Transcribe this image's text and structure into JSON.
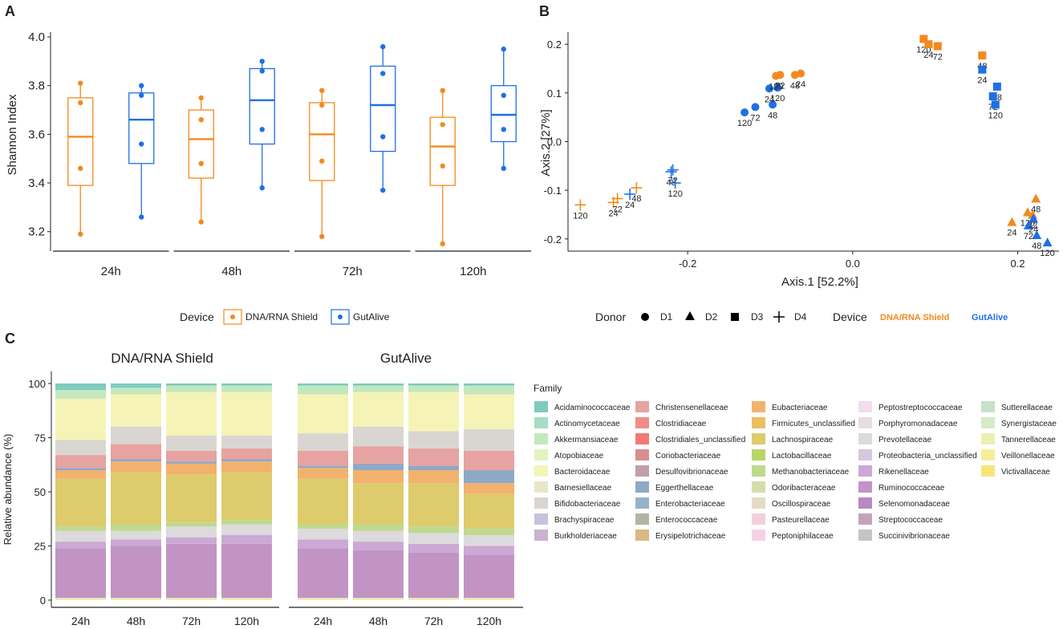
{
  "panels": {
    "A": {
      "label": "A",
      "ylabel": "Shannon Index",
      "yticks": [
        "3.2",
        "3.4",
        "3.6",
        "3.8",
        "4.0"
      ],
      "ytick_values": [
        3.2,
        3.4,
        3.6,
        3.8,
        4.0
      ],
      "ylim": [
        3.12,
        4.02
      ],
      "legend_title": "Device",
      "legend": [
        "DNA/RNA Shield",
        "GutAlive"
      ]
    },
    "B": {
      "label": "B",
      "xlabel": "Axis.1   [52.2%]",
      "ylabel": "Axis.2   [27%]",
      "xticks": [
        "-0.2",
        "0.0",
        "0.2"
      ],
      "xtick_values": [
        -0.2,
        0.0,
        0.2
      ],
      "yticks": [
        "-0.2",
        "-0.1",
        "0.0",
        "0.1",
        "0.2"
      ],
      "ytick_values": [
        -0.2,
        -0.1,
        0.0,
        0.1,
        0.2
      ],
      "xlim": [
        -0.345,
        0.25
      ],
      "ylim": [
        -0.225,
        0.225
      ],
      "donor_legend_title": "Donor",
      "donors": [
        "D1",
        "D2",
        "D3",
        "D4"
      ],
      "device_legend_title": "Device",
      "devices": [
        "DNA/RNA Shield",
        "GutAlive"
      ]
    },
    "C": {
      "label": "C",
      "ylabel": "Relative abundance (%)",
      "yticks": [
        "0",
        "25",
        "50",
        "75",
        "100"
      ],
      "ytick_values": [
        0,
        25,
        50,
        75,
        100
      ],
      "family_title": "Family"
    }
  },
  "colors": {
    "shield": "#F28A1E",
    "gutalive": "#1F6FE5",
    "axis": "#222222"
  },
  "chart_data": [
    {
      "type": "box",
      "panel": "A",
      "categories": [
        "24h",
        "48h",
        "72h",
        "120h"
      ],
      "series": [
        {
          "name": "DNA/RNA Shield",
          "boxes": [
            {
              "min": 3.19,
              "q1": 3.39,
              "median": 3.59,
              "q3": 3.75,
              "max": 3.81,
              "points": [
                3.81,
                3.73,
                3.46,
                3.19
              ]
            },
            {
              "min": 3.24,
              "q1": 3.42,
              "median": 3.58,
              "q3": 3.7,
              "max": 3.75,
              "points": [
                3.75,
                3.66,
                3.48,
                3.24
              ]
            },
            {
              "min": 3.18,
              "q1": 3.41,
              "median": 3.6,
              "q3": 3.73,
              "max": 3.78,
              "points": [
                3.78,
                3.72,
                3.49,
                3.18
              ]
            },
            {
              "min": 3.15,
              "q1": 3.39,
              "median": 3.55,
              "q3": 3.67,
              "max": 3.78,
              "points": [
                3.78,
                3.64,
                3.47,
                3.15
              ]
            }
          ]
        },
        {
          "name": "GutAlive",
          "boxes": [
            {
              "min": 3.26,
              "q1": 3.48,
              "median": 3.66,
              "q3": 3.77,
              "max": 3.8,
              "points": [
                3.8,
                3.76,
                3.56,
                3.26
              ]
            },
            {
              "min": 3.38,
              "q1": 3.56,
              "median": 3.74,
              "q3": 3.87,
              "max": 3.9,
              "points": [
                3.9,
                3.86,
                3.62,
                3.38
              ]
            },
            {
              "min": 3.37,
              "q1": 3.53,
              "median": 3.72,
              "q3": 3.88,
              "max": 3.96,
              "points": [
                3.96,
                3.85,
                3.59,
                3.37
              ]
            },
            {
              "min": 3.46,
              "q1": 3.57,
              "median": 3.68,
              "q3": 3.8,
              "max": 3.95,
              "points": [
                3.95,
                3.76,
                3.62,
                3.46
              ]
            }
          ]
        }
      ]
    },
    {
      "type": "scatter",
      "panel": "B",
      "points": [
        {
          "x": -0.33,
          "y": -0.13,
          "donor": "D4",
          "device": "DNA/RNA Shield",
          "label": "120"
        },
        {
          "x": -0.29,
          "y": -0.125,
          "donor": "D4",
          "device": "DNA/RNA Shield",
          "label": "24"
        },
        {
          "x": -0.285,
          "y": -0.117,
          "donor": "D4",
          "device": "DNA/RNA Shield",
          "label": "72"
        },
        {
          "x": -0.262,
          "y": -0.095,
          "donor": "D4",
          "device": "DNA/RNA Shield",
          "label": "48"
        },
        {
          "x": -0.27,
          "y": -0.108,
          "donor": "D4",
          "device": "GutAlive",
          "label": "24"
        },
        {
          "x": -0.218,
          "y": -0.058,
          "donor": "D4",
          "device": "GutAlive",
          "label": "72"
        },
        {
          "x": -0.22,
          "y": -0.062,
          "donor": "D4",
          "device": "GutAlive",
          "label": "48"
        },
        {
          "x": -0.215,
          "y": -0.085,
          "donor": "D4",
          "device": "GutAlive",
          "label": "120"
        },
        {
          "x": -0.131,
          "y": 0.06,
          "donor": "D1",
          "device": "GutAlive",
          "label": "120"
        },
        {
          "x": -0.118,
          "y": 0.071,
          "donor": "D1",
          "device": "GutAlive",
          "label": "72"
        },
        {
          "x": -0.097,
          "y": 0.076,
          "donor": "D1",
          "device": "GutAlive",
          "label": "48"
        },
        {
          "x": -0.101,
          "y": 0.109,
          "donor": "D1",
          "device": "GutAlive",
          "label": "24"
        },
        {
          "x": -0.091,
          "y": 0.111,
          "donor": "D1",
          "device": "GutAlive",
          "label": "120"
        },
        {
          "x": -0.093,
          "y": 0.135,
          "donor": "D1",
          "device": "DNA/RNA Shield",
          "label": "120"
        },
        {
          "x": -0.088,
          "y": 0.137,
          "donor": "D1",
          "device": "DNA/RNA Shield",
          "label": "72"
        },
        {
          "x": -0.07,
          "y": 0.137,
          "donor": "D1",
          "device": "DNA/RNA Shield",
          "label": "48"
        },
        {
          "x": -0.063,
          "y": 0.14,
          "donor": "D1",
          "device": "DNA/RNA Shield",
          "label": "24"
        },
        {
          "x": 0.086,
          "y": 0.211,
          "donor": "D3",
          "device": "DNA/RNA Shield",
          "label": "120"
        },
        {
          "x": 0.092,
          "y": 0.2,
          "donor": "D3",
          "device": "DNA/RNA Shield",
          "label": "24"
        },
        {
          "x": 0.103,
          "y": 0.196,
          "donor": "D3",
          "device": "DNA/RNA Shield",
          "label": "72"
        },
        {
          "x": 0.157,
          "y": 0.177,
          "donor": "D3",
          "device": "DNA/RNA Shield",
          "label": "48"
        },
        {
          "x": 0.157,
          "y": 0.148,
          "donor": "D3",
          "device": "GutAlive",
          "label": "24"
        },
        {
          "x": 0.175,
          "y": 0.113,
          "donor": "D3",
          "device": "GutAlive",
          "label": "48"
        },
        {
          "x": 0.17,
          "y": 0.093,
          "donor": "D3",
          "device": "GutAlive",
          "label": "72"
        },
        {
          "x": 0.173,
          "y": 0.076,
          "donor": "D3",
          "device": "GutAlive",
          "label": "120"
        },
        {
          "x": 0.193,
          "y": -0.165,
          "donor": "D2",
          "device": "DNA/RNA Shield",
          "label": "24"
        },
        {
          "x": 0.212,
          "y": -0.145,
          "donor": "D2",
          "device": "DNA/RNA Shield",
          "label": "120"
        },
        {
          "x": 0.222,
          "y": -0.117,
          "donor": "D2",
          "device": "DNA/RNA Shield",
          "label": "48"
        },
        {
          "x": 0.218,
          "y": -0.15,
          "donor": "D2",
          "device": "DNA/RNA Shield",
          "label": "72"
        },
        {
          "x": 0.213,
          "y": -0.172,
          "donor": "D2",
          "device": "GutAlive",
          "label": "72"
        },
        {
          "x": 0.219,
          "y": -0.158,
          "donor": "D2",
          "device": "GutAlive",
          "label": "24"
        },
        {
          "x": 0.223,
          "y": -0.192,
          "donor": "D2",
          "device": "GutAlive",
          "label": "48"
        },
        {
          "x": 0.236,
          "y": -0.207,
          "donor": "D2",
          "device": "GutAlive",
          "label": "120"
        }
      ]
    },
    {
      "type": "stacked_bar",
      "panel": "C",
      "groups": [
        "DNA/RNA Shield",
        "GutAlive"
      ],
      "categories": [
        "24h",
        "48h",
        "72h",
        "120h"
      ],
      "families": [
        {
          "name": "Acidaminococcaceae",
          "color": "#7ECBBE"
        },
        {
          "name": "Actinomycetaceae",
          "color": "#A7DCC6"
        },
        {
          "name": "Akkermansiaceae",
          "color": "#C3E8BE"
        },
        {
          "name": "Atopobiaceae",
          "color": "#E1F3C0"
        },
        {
          "name": "Bacteroidaceae",
          "color": "#F5F4B6"
        },
        {
          "name": "Barnesiellaceae",
          "color": "#E8E6C9"
        },
        {
          "name": "Bifidobacteriaceae",
          "color": "#D9D6D2"
        },
        {
          "name": "Brachyspiraceae",
          "color": "#C7C3DD"
        },
        {
          "name": "Burkholderiaceae",
          "color": "#C9B3CF"
        },
        {
          "name": "Christensenellaceae",
          "color": "#E6A3A1"
        },
        {
          "name": "Clostridiaceae",
          "color": "#EE8E88"
        },
        {
          "name": "Clostridiales_unclassified",
          "color": "#F17A72"
        },
        {
          "name": "Coriobacteriaceae",
          "color": "#D88E8F"
        },
        {
          "name": "Desulfovibrionaceae",
          "color": "#BFA0A6"
        },
        {
          "name": "Eggerthellaceae",
          "color": "#8FA8C6"
        },
        {
          "name": "Enterobacteriaceae",
          "color": "#95B4CA"
        },
        {
          "name": "Enterococcaceae",
          "color": "#B5B4A4"
        },
        {
          "name": "Erysipelotrichaceae",
          "color": "#D8B884"
        },
        {
          "name": "Eubacteriaceae",
          "color": "#F2B26E"
        },
        {
          "name": "Firmicutes_unclassified",
          "color": "#EDBE62"
        },
        {
          "name": "Lachnospiraceae",
          "color": "#DDCB6C"
        },
        {
          "name": "Lactobacillaceae",
          "color": "#B8D568"
        },
        {
          "name": "Methanobacteriaceae",
          "color": "#BFD98D"
        },
        {
          "name": "Odoribacteraceae",
          "color": "#D3DEA8"
        },
        {
          "name": "Oscillospiraceae",
          "color": "#E4DCC4"
        },
        {
          "name": "Pasteurellaceae",
          "color": "#F3CFDB"
        },
        {
          "name": "Peptoniphilaceae",
          "color": "#F4D2E6"
        },
        {
          "name": "Peptostreptococcaceae",
          "color": "#F1DDEB"
        },
        {
          "name": "Porphyromonadaceae",
          "color": "#E9DCE4"
        },
        {
          "name": "Prevotellaceae",
          "color": "#DCDADC"
        },
        {
          "name": "Proteobacteria_unclassified",
          "color": "#D6C8DE"
        },
        {
          "name": "Rikenellaceae",
          "color": "#CBA9D4"
        },
        {
          "name": "Ruminococcaceae",
          "color": "#C294C5"
        },
        {
          "name": "Selenomonadaceae",
          "color": "#B889C2"
        },
        {
          "name": "Streptococcaceae",
          "color": "#C3A3BC"
        },
        {
          "name": "Succinivibrionaceae",
          "color": "#C7C4C2"
        },
        {
          "name": "Sutterellaceae",
          "color": "#C9E0C9"
        },
        {
          "name": "Synergistaceae",
          "color": "#D6EBC8"
        },
        {
          "name": "Tannerellaceae",
          "color": "#EAF0B3"
        },
        {
          "name": "Veillonellaceae",
          "color": "#F7EE9A"
        },
        {
          "name": "Victivallaceae",
          "color": "#F7E57C"
        }
      ],
      "segments_order": [
        "Bacteroidaceae_base",
        "Ruminococcaceae",
        "Rikenellaceae",
        "Prevotellaceae",
        "Methanobacteriaceae",
        "Lachnospiraceae",
        "Eubacteriaceae",
        "Eggerthellaceae",
        "Christensenellaceae",
        "Bifidobacteriaceae",
        "Bacteroidaceae",
        "Akkermansiaceae",
        "Acidaminococcaceae"
      ],
      "bars": {
        "DNA/RNA Shield": [
          {
            "Tannerellaceae": 1,
            "Ruminococcaceae": 23,
            "Rikenellaceae": 3,
            "Prevotellaceae": 5,
            "Methanobacteriaceae": 2,
            "Lachnospiraceae": 22,
            "Eubacteriaceae": 4,
            "Eggerthellaceae": 1,
            "Christensenellaceae": 6,
            "Bifidobacteriaceae": 7,
            "Bacteroidaceae": 19,
            "Akkermansiaceae": 4,
            "Acidaminococcaceae": 1
          },
          {
            "Tannerellaceae": 1,
            "Ruminococcaceae": 24,
            "Rikenellaceae": 3,
            "Prevotellaceae": 4,
            "Methanobacteriaceae": 3,
            "Lachnospiraceae": 24,
            "Eubacteriaceae": 5,
            "Eggerthellaceae": 1,
            "Christensenellaceae": 7,
            "Bifidobacteriaceae": 8,
            "Bacteroidaceae": 15,
            "Akkermansiaceae": 3,
            "Acidaminococcaceae": 1
          },
          {
            "Tannerellaceae": 1,
            "Ruminococcaceae": 25,
            "Rikenellaceae": 3,
            "Prevotellaceae": 5,
            "Methanobacteriaceae": 2,
            "Lachnospiraceae": 22,
            "Eubacteriaceae": 5,
            "Eggerthellaceae": 1,
            "Christensenellaceae": 5,
            "Bifidobacteriaceae": 7,
            "Bacteroidaceae": 20,
            "Akkermansiaceae": 3,
            "Acidaminococcaceae": 1
          },
          {
            "Tannerellaceae": 1,
            "Ruminococcaceae": 25,
            "Rikenellaceae": 4,
            "Prevotellaceae": 5,
            "Methanobacteriaceae": 2,
            "Lachnospiraceae": 22,
            "Eubacteriaceae": 5,
            "Eggerthellaceae": 1,
            "Christensenellaceae": 5,
            "Bifidobacteriaceae": 6,
            "Bacteroidaceae": 20,
            "Akkermansiaceae": 3,
            "Acidaminococcaceae": 1
          }
        ],
        "GutAlive": [
          {
            "Tannerellaceae": 1,
            "Ruminococcaceae": 23,
            "Rikenellaceae": 4,
            "Prevotellaceae": 5,
            "Methanobacteriaceae": 2,
            "Lachnospiraceae": 21,
            "Eubacteriaceae": 5,
            "Eggerthellaceae": 1,
            "Christensenellaceae": 7,
            "Bifidobacteriaceae": 8,
            "Bacteroidaceae": 18,
            "Akkermansiaceae": 4,
            "Acidaminococcaceae": 1
          },
          {
            "Tannerellaceae": 1,
            "Ruminococcaceae": 22,
            "Rikenellaceae": 4,
            "Prevotellaceae": 5,
            "Methanobacteriaceae": 3,
            "Lachnospiraceae": 19,
            "Eubacteriaceae": 6,
            "Eggerthellaceae": 3,
            "Christensenellaceae": 8,
            "Bifidobacteriaceae": 9,
            "Bacteroidaceae": 16,
            "Akkermansiaceae": 3,
            "Acidaminococcaceae": 1
          },
          {
            "Tannerellaceae": 1,
            "Ruminococcaceae": 21,
            "Rikenellaceae": 4,
            "Prevotellaceae": 5,
            "Methanobacteriaceae": 3,
            "Lachnospiraceae": 20,
            "Eubacteriaceae": 6,
            "Eggerthellaceae": 2,
            "Christensenellaceae": 8,
            "Bifidobacteriaceae": 8,
            "Bacteroidaceae": 18,
            "Akkermansiaceae": 3,
            "Acidaminococcaceae": 1
          },
          {
            "Tannerellaceae": 1,
            "Ruminococcaceae": 20,
            "Rikenellaceae": 4,
            "Prevotellaceae": 5,
            "Methanobacteriaceae": 3,
            "Lachnospiraceae": 16,
            "Eubacteriaceae": 5,
            "Eggerthellaceae": 6,
            "Christensenellaceae": 9,
            "Bifidobacteriaceae": 10,
            "Bacteroidaceae": 16,
            "Akkermansiaceae": 4,
            "Acidaminococcaceae": 1
          }
        ]
      }
    }
  ]
}
